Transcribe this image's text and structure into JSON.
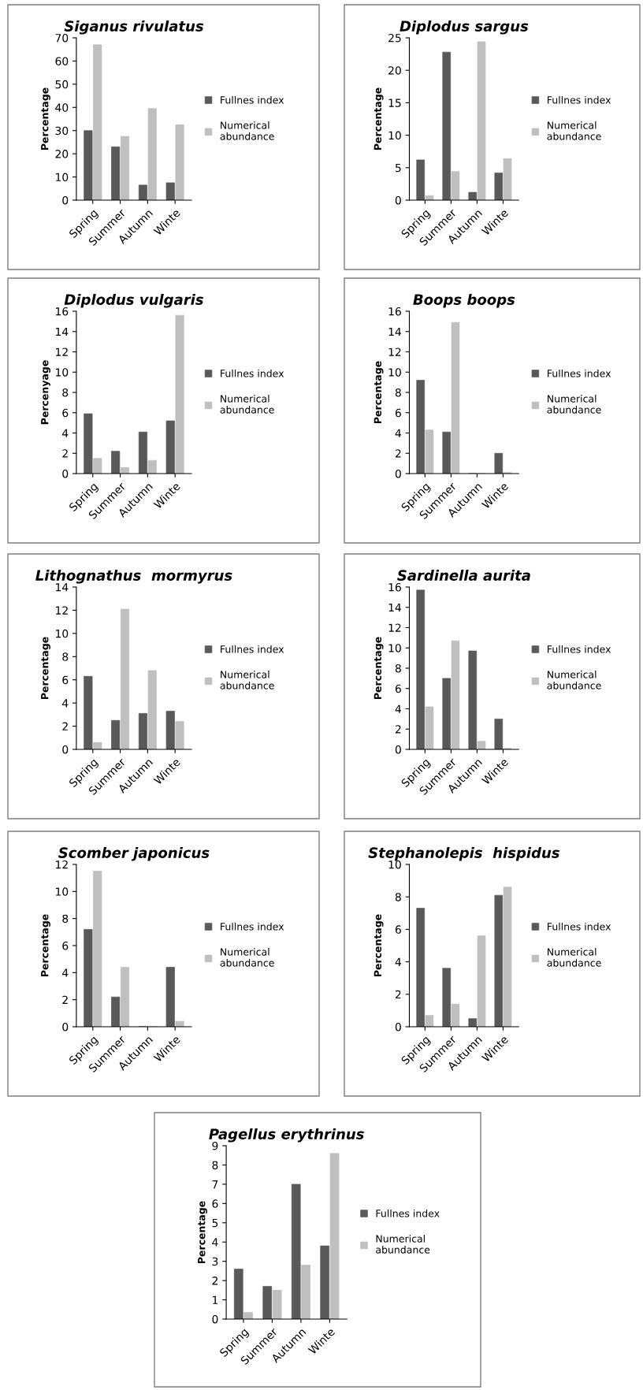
{
  "chart_data": [
    {
      "type": "bar",
      "title": "Siganus rivulatus",
      "ylabel": "Percentage",
      "categories": [
        "Spring",
        "Summer",
        "Autumn",
        "Winte"
      ],
      "ylim": [
        0,
        70
      ],
      "yticks": [
        0,
        10,
        20,
        30,
        40,
        50,
        60,
        70
      ],
      "legend": "right",
      "grid": false,
      "series": [
        {
          "name": "Fullnes index",
          "color": "#595959",
          "values": [
            30,
            23,
            6.5,
            7.5
          ]
        },
        {
          "name": "Numerical abundance",
          "color": "#bfbfbf",
          "values": [
            67,
            27.5,
            39.5,
            32.5
          ]
        }
      ]
    },
    {
      "type": "bar",
      "title": "Diplodus sargus",
      "ylabel": "Percentage",
      "categories": [
        "Spring",
        "Summer",
        "Autumn",
        "Winte"
      ],
      "ylim": [
        0,
        25
      ],
      "yticks": [
        0,
        5,
        10,
        15,
        20,
        25
      ],
      "legend": "right",
      "grid": false,
      "series": [
        {
          "name": "Fullnes index",
          "color": "#595959",
          "values": [
            6.2,
            22.8,
            1.2,
            4.2
          ]
        },
        {
          "name": "Numerical abundance",
          "color": "#bfbfbf",
          "values": [
            0.7,
            4.4,
            24.4,
            6.4
          ]
        }
      ]
    },
    {
      "type": "bar",
      "title": "Diplodus vulgaris",
      "ylabel": "Percenyage",
      "categories": [
        "Spring",
        "Summer",
        "Autumn",
        "Winte"
      ],
      "ylim": [
        0,
        16
      ],
      "yticks": [
        0,
        2,
        4,
        6,
        8,
        10,
        12,
        14,
        16
      ],
      "legend": "right",
      "grid": false,
      "series": [
        {
          "name": "Fullnes index",
          "color": "#595959",
          "values": [
            5.9,
            2.2,
            4.1,
            5.2
          ]
        },
        {
          "name": "Numerical abundance",
          "color": "#bfbfbf",
          "values": [
            1.5,
            0.6,
            1.3,
            15.6
          ]
        }
      ]
    },
    {
      "type": "bar",
      "title": "Boops boops",
      "ylabel": "Percentage",
      "categories": [
        "Spring",
        "Summer",
        "Autumn",
        "Winte"
      ],
      "ylim": [
        0,
        16
      ],
      "yticks": [
        0,
        2,
        4,
        6,
        8,
        10,
        12,
        14,
        16
      ],
      "legend": "right",
      "grid": false,
      "series": [
        {
          "name": "Fullnes index",
          "color": "#595959",
          "values": [
            9.2,
            4.1,
            0,
            2.0
          ]
        },
        {
          "name": "Numerical abundance",
          "color": "#bfbfbf",
          "values": [
            4.3,
            14.9,
            0,
            0.1
          ]
        }
      ]
    },
    {
      "type": "bar",
      "title": "Lithognathus  mormyrus",
      "ylabel": "Percentage",
      "categories": [
        "Spring",
        "Summer",
        "Autumn",
        "Winte"
      ],
      "ylim": [
        0,
        14
      ],
      "yticks": [
        0,
        2,
        4,
        6,
        8,
        10,
        12,
        14
      ],
      "legend": "right",
      "grid": false,
      "series": [
        {
          "name": "Fullnes index",
          "color": "#595959",
          "values": [
            6.3,
            2.5,
            3.1,
            3.3
          ]
        },
        {
          "name": "Numerical abundance",
          "color": "#bfbfbf",
          "values": [
            0.6,
            12.1,
            6.8,
            2.4
          ]
        }
      ]
    },
    {
      "type": "bar",
      "title": "Sardinella aurita",
      "ylabel": "Percentage",
      "categories": [
        "Spring",
        "Summer",
        "Autumn",
        "Winte"
      ],
      "ylim": [
        0,
        16
      ],
      "yticks": [
        0,
        2,
        4,
        6,
        8,
        10,
        12,
        14,
        16
      ],
      "legend": "right",
      "grid": false,
      "series": [
        {
          "name": "Fullnes index",
          "color": "#595959",
          "values": [
            15.7,
            7.0,
            9.7,
            3.0
          ]
        },
        {
          "name": "Numerical abundance",
          "color": "#bfbfbf",
          "values": [
            4.2,
            10.7,
            0.8,
            0.1
          ]
        }
      ]
    },
    {
      "type": "bar",
      "title": "Scomber japonicus",
      "ylabel": "Percentage",
      "categories": [
        "Spring",
        "Summer",
        "Autumn",
        "Winte"
      ],
      "ylim": [
        0,
        12
      ],
      "yticks": [
        0,
        2,
        4,
        6,
        8,
        10,
        12
      ],
      "legend": "right",
      "grid": false,
      "series": [
        {
          "name": "Fullnes index",
          "color": "#595959",
          "values": [
            7.2,
            2.2,
            0,
            4.4
          ]
        },
        {
          "name": "Numerical abundance",
          "color": "#bfbfbf",
          "values": [
            11.5,
            4.4,
            0,
            0.4
          ]
        }
      ]
    },
    {
      "type": "bar",
      "title": "Stephanolepis  hispidus",
      "ylabel": "Percentage",
      "categories": [
        "Spring",
        "Summer",
        "Autumn",
        "Winte"
      ],
      "ylim": [
        0,
        10
      ],
      "yticks": [
        0,
        2,
        4,
        6,
        8,
        10
      ],
      "legend": "right",
      "grid": false,
      "series": [
        {
          "name": "Fullnes index",
          "color": "#595959",
          "values": [
            7.3,
            3.6,
            0.5,
            8.1
          ]
        },
        {
          "name": "Numerical abundance",
          "color": "#bfbfbf",
          "values": [
            0.7,
            1.4,
            5.6,
            8.6
          ]
        }
      ]
    },
    {
      "type": "bar",
      "title": "Pagellus erythrinus",
      "ylabel": "Percentage",
      "categories": [
        "Spring",
        "Summer",
        "Autumn",
        "Winte"
      ],
      "ylim": [
        0,
        9
      ],
      "yticks": [
        0,
        1,
        2,
        3,
        4,
        5,
        6,
        7,
        8,
        9
      ],
      "legend": "right",
      "grid": false,
      "series": [
        {
          "name": "Fullnes index",
          "color": "#595959",
          "values": [
            2.6,
            1.7,
            7.0,
            3.8
          ]
        },
        {
          "name": "Numerical abundance",
          "color": "#bfbfbf",
          "values": [
            0.35,
            1.5,
            2.8,
            8.6
          ]
        }
      ]
    }
  ]
}
